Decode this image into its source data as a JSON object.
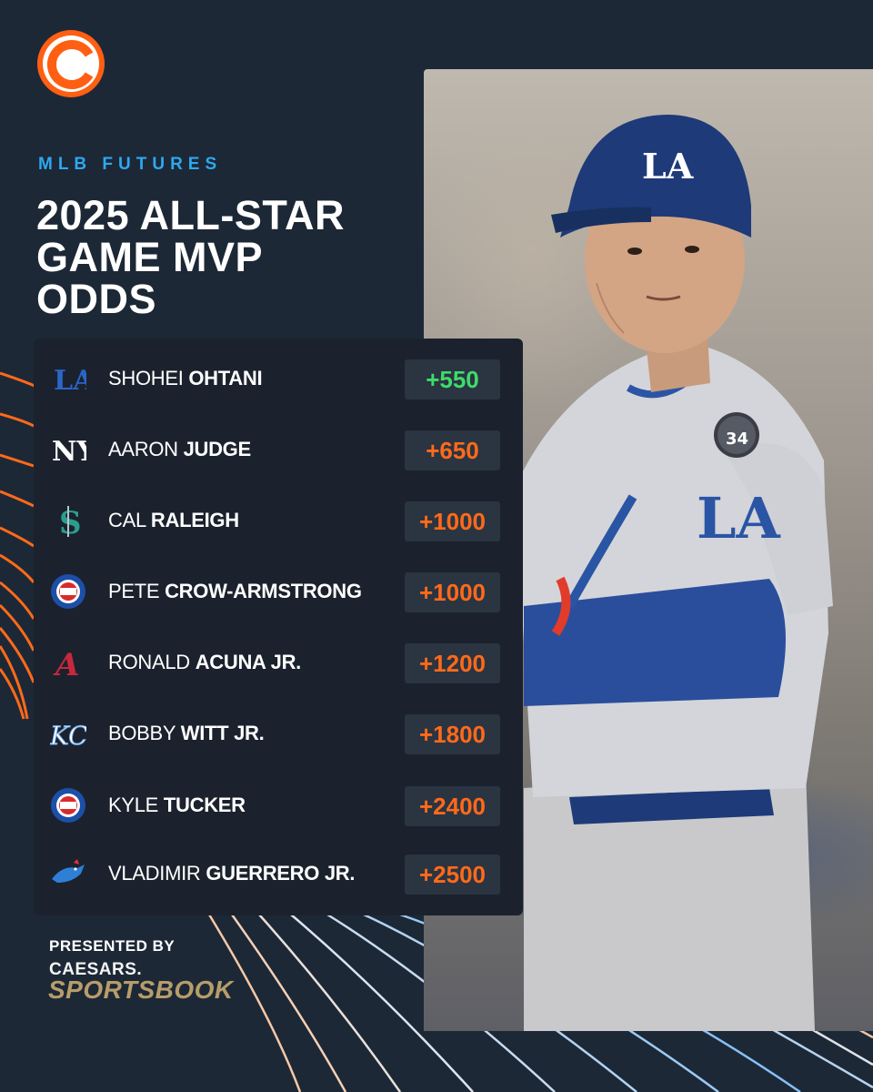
{
  "header": {
    "eyebrow": "MLB FUTURES",
    "title_lines": [
      "2025 ALL-STAR",
      "GAME MVP",
      "ODDS"
    ]
  },
  "odds_list": [
    {
      "first": "SHOHEI",
      "last": "OHTANI",
      "odds": "+550",
      "team_logo": "dodgers-logo-icon",
      "odds_color": "#3ddc6a"
    },
    {
      "first": "AARON",
      "last": "JUDGE",
      "odds": "+650",
      "team_logo": "yankees-logo-icon",
      "odds_color": "#ff6a1a"
    },
    {
      "first": "CAL",
      "last": "RALEIGH",
      "odds": "+1000",
      "team_logo": "mariners-logo-icon",
      "odds_color": "#ff6a1a"
    },
    {
      "first": "PETE",
      "last": "CROW-ARMSTRONG",
      "odds": "+1000",
      "team_logo": "cubs-logo-icon",
      "odds_color": "#ff6a1a"
    },
    {
      "first": "RONALD",
      "last": "ACUNA JR.",
      "odds": "+1200",
      "team_logo": "braves-logo-icon",
      "odds_color": "#ff6a1a"
    },
    {
      "first": "BOBBY",
      "last": "WITT JR.",
      "odds": "+1800",
      "team_logo": "royals-logo-icon",
      "odds_color": "#ff6a1a"
    },
    {
      "first": "KYLE",
      "last": "TUCKER",
      "odds": "+2400",
      "team_logo": "cubs-logo-icon",
      "odds_color": "#ff6a1a"
    },
    {
      "first": "VLADIMIR",
      "last": "GUERRERO JR.",
      "odds": "+2500",
      "team_logo": "blue-jays-logo-icon",
      "odds_color": "#ff6a1a"
    }
  ],
  "footer": {
    "presented_by": "PRESENTED BY",
    "brand_line1": "CAESARS.",
    "brand_line2": "SPORTSBOOK"
  },
  "photo": {
    "helmet_logo": "LA",
    "jersey_logo": "LA",
    "patch_number": "34"
  },
  "colors": {
    "background": "#1d2836",
    "card": "#1b222d",
    "eyebrow": "#2ea8f0",
    "accent_orange": "#ff6a1a",
    "accent_green": "#3ddc6a",
    "brand_gold": "#b79d6a"
  }
}
